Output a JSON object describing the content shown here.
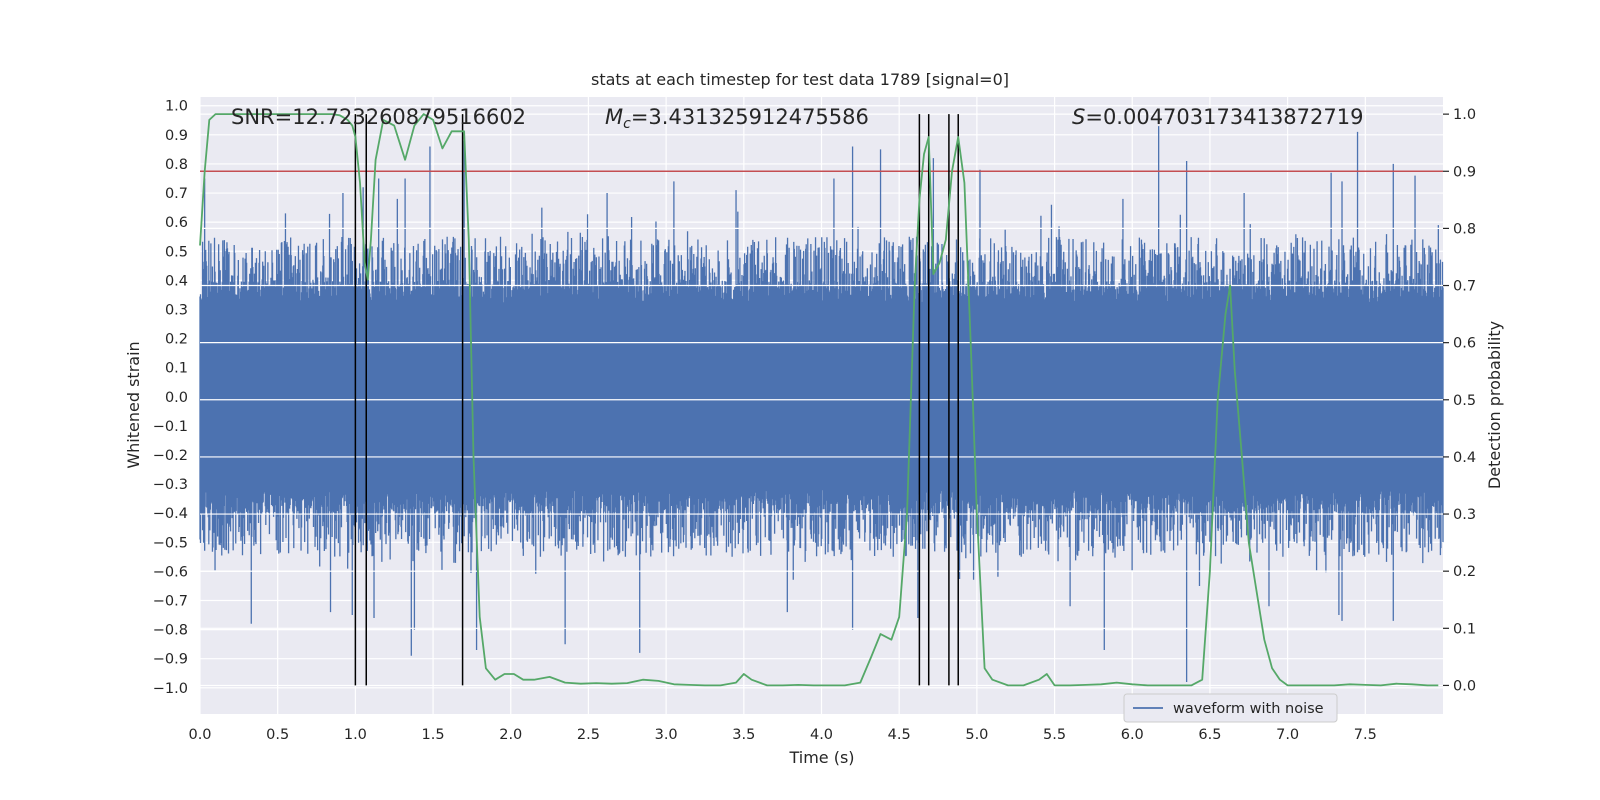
{
  "chart_data": {
    "type": "line",
    "title": "stats at each timestep for test data 1789 [signal=0]",
    "xlabel": "Time (s)",
    "ylabel_left": "Whitened strain",
    "ylabel_right": "Detection probability",
    "xlim": [
      0,
      8.0
    ],
    "ylim_left": [
      -1.09,
      1.03
    ],
    "ylim_right": [
      -0.05,
      1.03
    ],
    "xticks": [
      0.0,
      0.5,
      1.0,
      1.5,
      2.0,
      2.5,
      3.0,
      3.5,
      4.0,
      4.5,
      5.0,
      5.5,
      6.0,
      6.5,
      7.0,
      7.5
    ],
    "xtick_labels": [
      "0.0",
      "0.5",
      "1.0",
      "1.5",
      "2.0",
      "2.5",
      "3.0",
      "3.5",
      "4.0",
      "4.5",
      "5.0",
      "5.5",
      "6.0",
      "6.5",
      "7.0",
      "7.5"
    ],
    "yticks_left": [
      1.0,
      0.9,
      0.8,
      0.7,
      0.6,
      0.5,
      0.4,
      0.3,
      0.2,
      0.1,
      0.0,
      -0.1,
      -0.2,
      -0.3,
      -0.4,
      -0.5,
      -0.6,
      -0.7,
      -0.8,
      -0.9,
      -1.0
    ],
    "ytick_labels_left": [
      "1.0",
      "0.9",
      "0.8",
      "0.7",
      "0.6",
      "0.5",
      "0.4",
      "0.3",
      "0.2",
      "0.1",
      "0.0",
      "−0.1",
      "−0.2",
      "−0.3",
      "−0.4",
      "−0.5",
      "−0.6",
      "−0.7",
      "−0.8",
      "−0.9",
      "−1.0"
    ],
    "yticks_right": [
      0.0,
      0.1,
      0.2,
      0.3,
      0.4,
      0.5,
      0.6,
      0.7,
      0.8,
      0.9,
      1.0
    ],
    "ytick_labels_right": [
      "0.0",
      "0.1",
      "0.2",
      "0.3",
      "0.4",
      "0.5",
      "0.6",
      "0.7",
      "0.8",
      "0.9",
      "1.0"
    ],
    "annotations": {
      "snr": "SNR=12.723260879516602",
      "mc_symbol": "M",
      "mc_subscript": "c",
      "mc_value": "=3.431325912475586",
      "s_symbol": "S",
      "s_value": "=0.004703173413872719"
    },
    "threshold": 0.9,
    "vertical_markers": [
      1.0,
      1.07,
      1.69,
      4.63,
      4.69,
      4.82,
      4.88
    ],
    "waveform": {
      "name": "waveform with noise",
      "axis": "left",
      "core_amplitude": 0.32,
      "typical_peak": 0.55,
      "spikes_up": [
        {
          "t": 0.03,
          "v": 0.75
        },
        {
          "t": 0.55,
          "v": 0.63
        },
        {
          "t": 0.92,
          "v": 0.7
        },
        {
          "t": 1.05,
          "v": 0.72
        },
        {
          "t": 1.15,
          "v": 0.75
        },
        {
          "t": 1.27,
          "v": 0.68
        },
        {
          "t": 1.32,
          "v": 0.75
        },
        {
          "t": 1.48,
          "v": 0.86
        },
        {
          "t": 1.7,
          "v": 0.88
        },
        {
          "t": 2.2,
          "v": 0.65
        },
        {
          "t": 2.62,
          "v": 0.7
        },
        {
          "t": 3.05,
          "v": 0.74
        },
        {
          "t": 3.45,
          "v": 0.71
        },
        {
          "t": 4.08,
          "v": 0.75
        },
        {
          "t": 4.2,
          "v": 0.86
        },
        {
          "t": 4.38,
          "v": 0.85
        },
        {
          "t": 4.72,
          "v": 0.82
        },
        {
          "t": 5.02,
          "v": 0.78
        },
        {
          "t": 5.48,
          "v": 0.66
        },
        {
          "t": 5.94,
          "v": 0.68
        },
        {
          "t": 6.17,
          "v": 0.93
        },
        {
          "t": 6.35,
          "v": 0.81
        },
        {
          "t": 6.72,
          "v": 0.7
        },
        {
          "t": 7.28,
          "v": 0.77
        },
        {
          "t": 7.35,
          "v": 0.74
        },
        {
          "t": 7.45,
          "v": 0.91
        },
        {
          "t": 7.68,
          "v": 0.8
        },
        {
          "t": 7.82,
          "v": 0.76
        }
      ],
      "spikes_down": [
        {
          "t": 0.33,
          "v": -0.78
        },
        {
          "t": 0.84,
          "v": -0.74
        },
        {
          "t": 0.98,
          "v": -0.75
        },
        {
          "t": 1.12,
          "v": -0.76
        },
        {
          "t": 1.38,
          "v": -0.8
        },
        {
          "t": 1.36,
          "v": -0.89
        },
        {
          "t": 1.78,
          "v": -0.87
        },
        {
          "t": 2.35,
          "v": -0.85
        },
        {
          "t": 2.83,
          "v": -0.88
        },
        {
          "t": 3.78,
          "v": -0.74
        },
        {
          "t": 4.2,
          "v": -0.8
        },
        {
          "t": 4.62,
          "v": -0.76
        },
        {
          "t": 5.6,
          "v": -0.72
        },
        {
          "t": 5.82,
          "v": -0.87
        },
        {
          "t": 6.35,
          "v": -0.98
        },
        {
          "t": 6.88,
          "v": -0.72
        },
        {
          "t": 7.33,
          "v": -0.75
        },
        {
          "t": 7.35,
          "v": -0.77
        },
        {
          "t": 7.68,
          "v": -0.77
        }
      ]
    },
    "probability": {
      "axis": "right",
      "x": [
        0.0,
        0.03,
        0.06,
        0.1,
        0.15,
        0.2,
        0.3,
        0.4,
        0.5,
        0.6,
        0.7,
        0.8,
        0.85,
        0.9,
        0.95,
        0.98,
        1.0,
        1.03,
        1.06,
        1.08,
        1.1,
        1.13,
        1.18,
        1.25,
        1.32,
        1.38,
        1.44,
        1.5,
        1.56,
        1.62,
        1.7,
        1.73,
        1.76,
        1.8,
        1.84,
        1.9,
        1.96,
        2.02,
        2.08,
        2.15,
        2.25,
        2.35,
        2.45,
        2.55,
        2.65,
        2.75,
        2.85,
        2.95,
        3.05,
        3.15,
        3.25,
        3.35,
        3.45,
        3.5,
        3.55,
        3.65,
        3.75,
        3.85,
        3.95,
        4.05,
        4.15,
        4.25,
        4.32,
        4.38,
        4.45,
        4.5,
        4.55,
        4.6,
        4.63,
        4.66,
        4.69,
        4.72,
        4.76,
        4.8,
        4.84,
        4.88,
        4.92,
        4.96,
        5.0,
        5.05,
        5.1,
        5.2,
        5.3,
        5.4,
        5.45,
        5.5,
        5.6,
        5.7,
        5.8,
        5.9,
        6.0,
        6.1,
        6.2,
        6.3,
        6.38,
        6.45,
        6.5,
        6.55,
        6.6,
        6.63,
        6.66,
        6.7,
        6.75,
        6.85,
        6.9,
        6.95,
        7.0,
        7.1,
        7.2,
        7.3,
        7.4,
        7.5,
        7.6,
        7.7,
        7.8,
        7.9,
        7.97
      ],
      "y": [
        0.77,
        0.9,
        0.99,
        1.0,
        1.0,
        1.0,
        1.0,
        1.0,
        1.0,
        1.0,
        1.0,
        1.0,
        1.0,
        0.998,
        0.99,
        0.98,
        0.96,
        0.88,
        0.74,
        0.71,
        0.78,
        0.92,
        0.99,
        0.98,
        0.92,
        0.98,
        1.0,
        0.99,
        0.94,
        0.97,
        0.97,
        0.78,
        0.4,
        0.12,
        0.03,
        0.01,
        0.02,
        0.02,
        0.01,
        0.01,
        0.015,
        0.005,
        0.003,
        0.004,
        0.003,
        0.004,
        0.01,
        0.008,
        0.002,
        0.001,
        0.0,
        0.0,
        0.005,
        0.02,
        0.01,
        0.0,
        0.0,
        0.001,
        0.0,
        0.0,
        0.0,
        0.005,
        0.05,
        0.09,
        0.08,
        0.12,
        0.3,
        0.7,
        0.85,
        0.93,
        0.96,
        0.72,
        0.74,
        0.78,
        0.9,
        0.96,
        0.88,
        0.6,
        0.3,
        0.03,
        0.01,
        0.0,
        0.0,
        0.01,
        0.02,
        0.0,
        0.0,
        0.001,
        0.002,
        0.005,
        0.002,
        0.0,
        0.0,
        0.0,
        0.0,
        0.01,
        0.2,
        0.5,
        0.65,
        0.7,
        0.55,
        0.42,
        0.25,
        0.08,
        0.03,
        0.01,
        0.0,
        0.0,
        0.0,
        0.0,
        0.002,
        0.001,
        0.0,
        0.003,
        0.002,
        0.0,
        0.0
      ]
    },
    "legend": {
      "label": "waveform with noise",
      "position": "lower-right"
    },
    "colors": {
      "background": "#eaeaf2",
      "grid": "#ffffff",
      "waveform": "#4c72b0",
      "probability": "#55a868",
      "threshold": "#c44e52",
      "markers": "#000000",
      "text": "#262626"
    }
  }
}
